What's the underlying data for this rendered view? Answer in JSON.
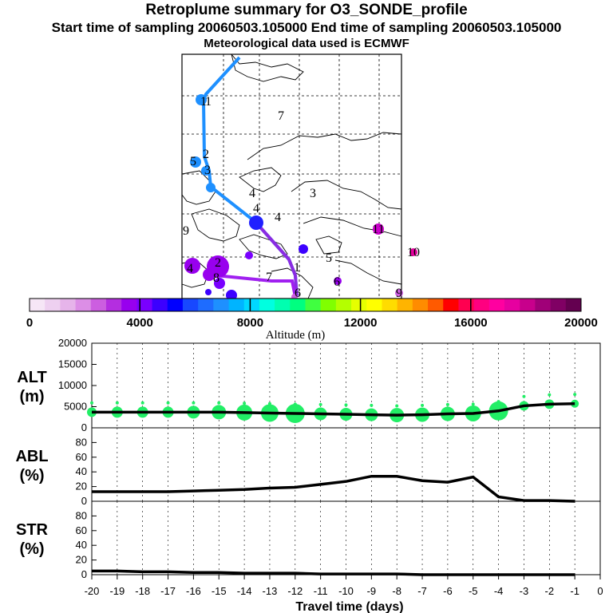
{
  "header": {
    "title": "Retroplume summary for O3_SONDE_profile",
    "sampling": "Start time of sampling 20060503.105000     End time of sampling 20060503.105000",
    "met": "Meteorological data used is ECMWF"
  },
  "colors": {
    "trajectory_upper": "#1e90ff",
    "trajectory_lower": "#8a2be2",
    "bubbles_alt": "#22ee66",
    "line": "#000000"
  },
  "map": {
    "labels": [
      "1",
      "1",
      "7",
      "2",
      "5",
      "3",
      "4",
      "3",
      "4",
      "4",
      "9",
      "11",
      "10",
      "5",
      "4",
      "2",
      "8",
      "7",
      "1",
      "6",
      "9",
      "6"
    ]
  },
  "colorbar": {
    "ticks": [
      "0",
      "4000",
      "8000",
      "12000",
      "16000",
      "20000"
    ],
    "label": "Altitude (m)",
    "colors": [
      "#f6e6f6",
      "#eed0f0",
      "#e6b4ea",
      "#dc8ee6",
      "#cc5ee0",
      "#b42ee0",
      "#9800ee",
      "#7a00ff",
      "#3c00ff",
      "#0000ff",
      "#1848ff",
      "#1e6cff",
      "#1e90ff",
      "#00b4ff",
      "#00d8ff",
      "#00ffe0",
      "#00ffb0",
      "#00ff80",
      "#40ff40",
      "#80ff00",
      "#b4ff00",
      "#e6ff00",
      "#ffff00",
      "#ffdc00",
      "#ffb400",
      "#ff8c00",
      "#ff5a00",
      "#ff0000",
      "#ff0050",
      "#ff0080",
      "#ff00a0",
      "#e600a0",
      "#c8008c",
      "#a00078",
      "#800064",
      "#640050"
    ]
  },
  "chart_data": [
    {
      "type": "line",
      "name": "ALT",
      "ylabel": "ALT\n(m)",
      "ylabel_lines": [
        "ALT",
        "(m)"
      ],
      "ylim": [
        0,
        20000
      ],
      "yticks": [
        "0",
        "5000",
        "10000",
        "15000",
        "20000"
      ],
      "x": [
        -20,
        -19,
        -18,
        -17,
        -16,
        -15,
        -14,
        -13,
        -12,
        -11,
        -10,
        -9,
        -8,
        -7,
        -6,
        -5,
        -4,
        -3,
        -2,
        -1
      ],
      "values": [
        3700,
        3700,
        3700,
        3700,
        3700,
        3700,
        3600,
        3500,
        3400,
        3300,
        3200,
        3100,
        3000,
        3100,
        3300,
        3400,
        4000,
        5200,
        5600,
        5700
      ],
      "bubble_sizes": [
        6,
        7,
        7,
        7,
        8,
        9,
        10,
        11,
        12,
        8,
        8,
        8,
        9,
        9,
        9,
        10,
        12,
        6,
        6,
        5
      ]
    },
    {
      "type": "line",
      "name": "ABL",
      "ylabel": "ABL\n(%)",
      "ylabel_lines": [
        "ABL",
        "(%)"
      ],
      "ylim": [
        0,
        100
      ],
      "yticks": [
        "0",
        "20",
        "40",
        "60",
        "80"
      ],
      "x": [
        -20,
        -19,
        -18,
        -17,
        -16,
        -15,
        -14,
        -13,
        -12,
        -11,
        -10,
        -9,
        -8,
        -7,
        -6,
        -5,
        -4,
        -3,
        -2,
        -1
      ],
      "values": [
        13,
        13,
        13,
        13,
        14,
        15,
        16,
        18,
        19,
        23,
        27,
        34,
        34,
        28,
        26,
        33,
        6,
        1,
        1,
        0
      ]
    },
    {
      "type": "line",
      "name": "STR",
      "ylabel": "STR\n(%)",
      "ylabel_lines": [
        "STR",
        "(%)"
      ],
      "ylim": [
        0,
        100
      ],
      "yticks": [
        "0",
        "20",
        "40",
        "60",
        "80"
      ],
      "x": [
        -20,
        -19,
        -18,
        -17,
        -16,
        -15,
        -14,
        -13,
        -12,
        -11,
        -10,
        -9,
        -8,
        -7,
        -6,
        -5,
        -4,
        -3,
        -2,
        -1
      ],
      "values": [
        5,
        5,
        4,
        4,
        3,
        3,
        2,
        2,
        2,
        1,
        1,
        1,
        1,
        0,
        0,
        0,
        0,
        0,
        0,
        0
      ]
    }
  ],
  "xaxis": {
    "ticks": [
      "-20",
      "-19",
      "-18",
      "-17",
      "-16",
      "-15",
      "-14",
      "-13",
      "-12",
      "-11",
      "-10",
      "-9",
      "-8",
      "-7",
      "-6",
      "-5",
      "-4",
      "-3",
      "-2",
      "-1",
      "0"
    ],
    "label": "Travel time (days)"
  }
}
